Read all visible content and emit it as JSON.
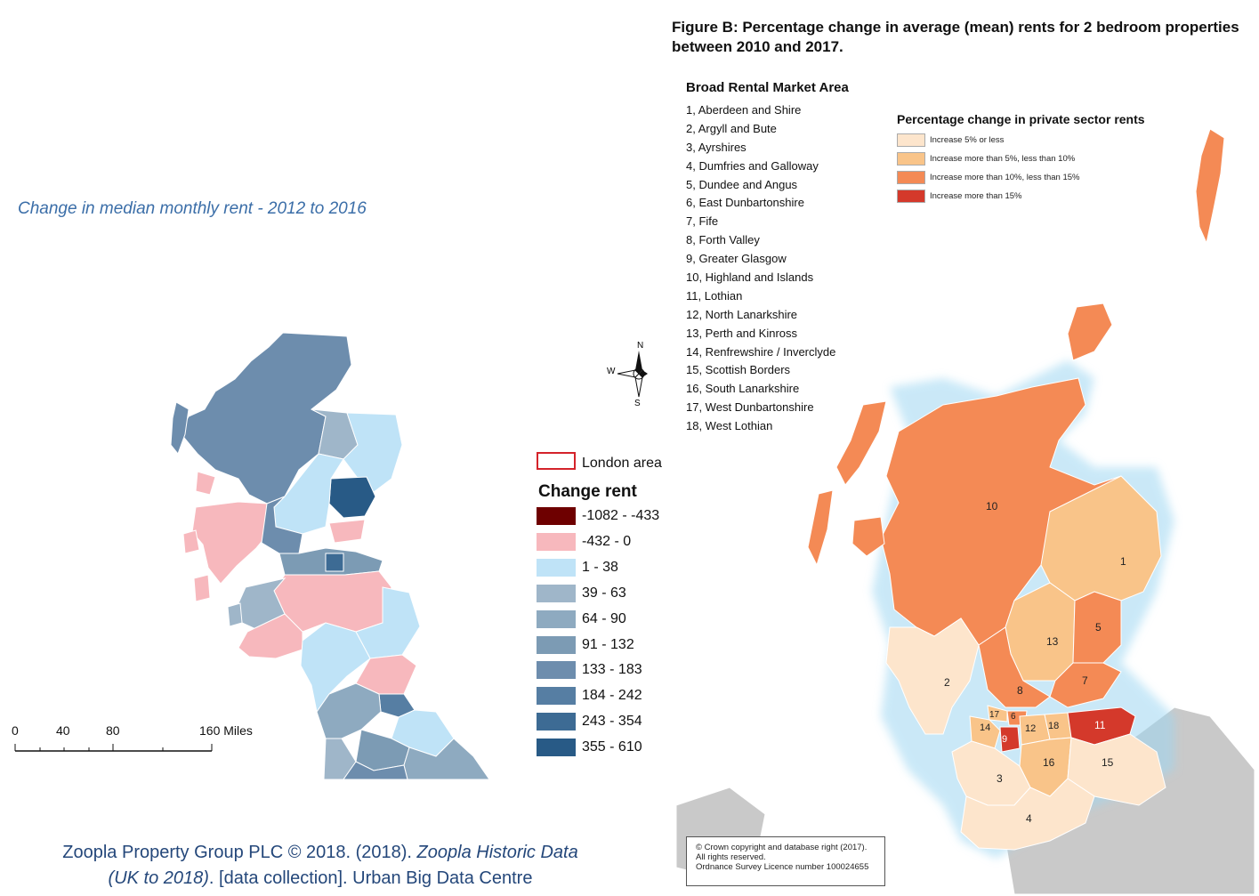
{
  "left_panel": {
    "subtitle": "Change in median monthly rent - 2012 to 2016",
    "citation": {
      "part1": "Zoopla Property Group PLC © 2018. (2018). ",
      "italic": "Zoopla Historic Data (UK to 2018)",
      "part2": ". [data collection]. Urban Big Data Centre"
    },
    "legend": {
      "london_label": "London area",
      "title": "Change rent",
      "classes": [
        {
          "label": "-1082 - -433",
          "color": "#6e0000"
        },
        {
          "label": "-432 - 0",
          "color": "#f7b8bd"
        },
        {
          "label": "1 - 38",
          "color": "#bfe3f7"
        },
        {
          "label": "39 - 63",
          "color": "#9fb6c9"
        },
        {
          "label": "64 - 90",
          "color": "#8eaac0"
        },
        {
          "label": "91 - 132",
          "color": "#7c9bb4"
        },
        {
          "label": "133 - 183",
          "color": "#6d8dad"
        },
        {
          "label": "184 - 242",
          "color": "#567ea3"
        },
        {
          "label": "243 - 354",
          "color": "#3d6b94"
        },
        {
          "label": "355 - 610",
          "color": "#285a86"
        }
      ]
    },
    "compass": {
      "n": "N",
      "w": "W",
      "s": "S"
    },
    "scalebar": {
      "ticks": [
        "0",
        "40",
        "80",
        "160 Miles"
      ]
    }
  },
  "right_panel": {
    "title": "Figure B: Percentage change in average (mean) rents for 2 bedroom properties between 2010 and 2017.",
    "rma_title": "Broad Rental Market Area",
    "rma_items": [
      "1, Aberdeen and Shire",
      "2, Argyll and Bute",
      "3, Ayrshires",
      "4, Dumfries and Galloway",
      "5, Dundee and Angus",
      "6, East Dunbartonshire",
      "7, Fife",
      "8, Forth Valley",
      "9, Greater Glasgow",
      "10, Highland and Islands",
      "11, Lothian",
      "12, North Lanarkshire",
      "13, Perth and Kinross",
      "14, Renfrewshire / Inverclyde",
      "15, Scottish Borders",
      "16, South Lanarkshire",
      "17, West Dunbartonshire",
      "18, West Lothian"
    ],
    "pct_legend": {
      "title": "Percentage change in private sector rents",
      "classes": [
        {
          "label": "Increase 5% or less",
          "color": "#fde5cc"
        },
        {
          "label": "Increase more than 5%, less than 10%",
          "color": "#f9c489"
        },
        {
          "label": "Increase more than 10%, less than 15%",
          "color": "#f48a55"
        },
        {
          "label": "Increase more than 15%",
          "color": "#d4392b"
        }
      ]
    },
    "map_labels": [
      "10",
      "1",
      "5",
      "13",
      "2",
      "8",
      "7",
      "6",
      "17",
      "14",
      "9",
      "12",
      "18",
      "11",
      "16",
      "15",
      "3",
      "4"
    ],
    "copyright": {
      "line1": "© Crown copyright and database right (2017).",
      "line2": "All rights reserved.",
      "line3": "Ordnance Survey Licence number 100024655"
    }
  }
}
